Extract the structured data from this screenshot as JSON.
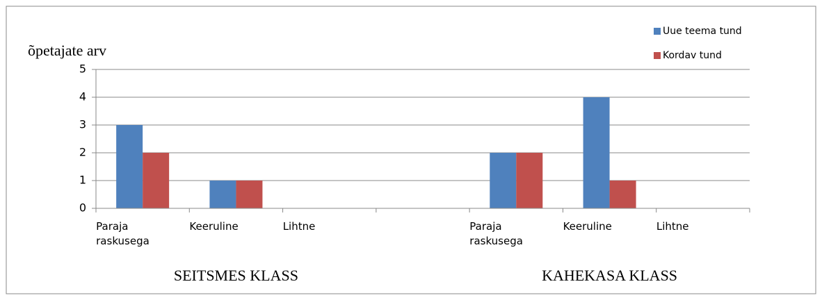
{
  "chart_data": {
    "type": "bar",
    "y_label": "õpetajate arv",
    "categories": [
      "Paraja raskusega",
      "Keeruline",
      "Lihtne",
      null,
      "Paraja raskusega",
      "Keeruline",
      "Lihtne"
    ],
    "group_labels": [
      "SEITSMES KLASS",
      "KAHEKASA KLASS"
    ],
    "series": [
      {
        "name": "Uue teema tund",
        "color": "#4f81bd",
        "values": [
          3,
          1,
          0,
          null,
          2,
          4,
          0
        ]
      },
      {
        "name": "Kordav tund",
        "color": "#c0504d",
        "values": [
          2,
          1,
          0,
          null,
          2,
          1,
          0
        ]
      }
    ],
    "ylim": [
      0,
      5
    ],
    "yticks": [
      0,
      1,
      2,
      3,
      4,
      5
    ],
    "grid": true,
    "legend": "top-right"
  }
}
